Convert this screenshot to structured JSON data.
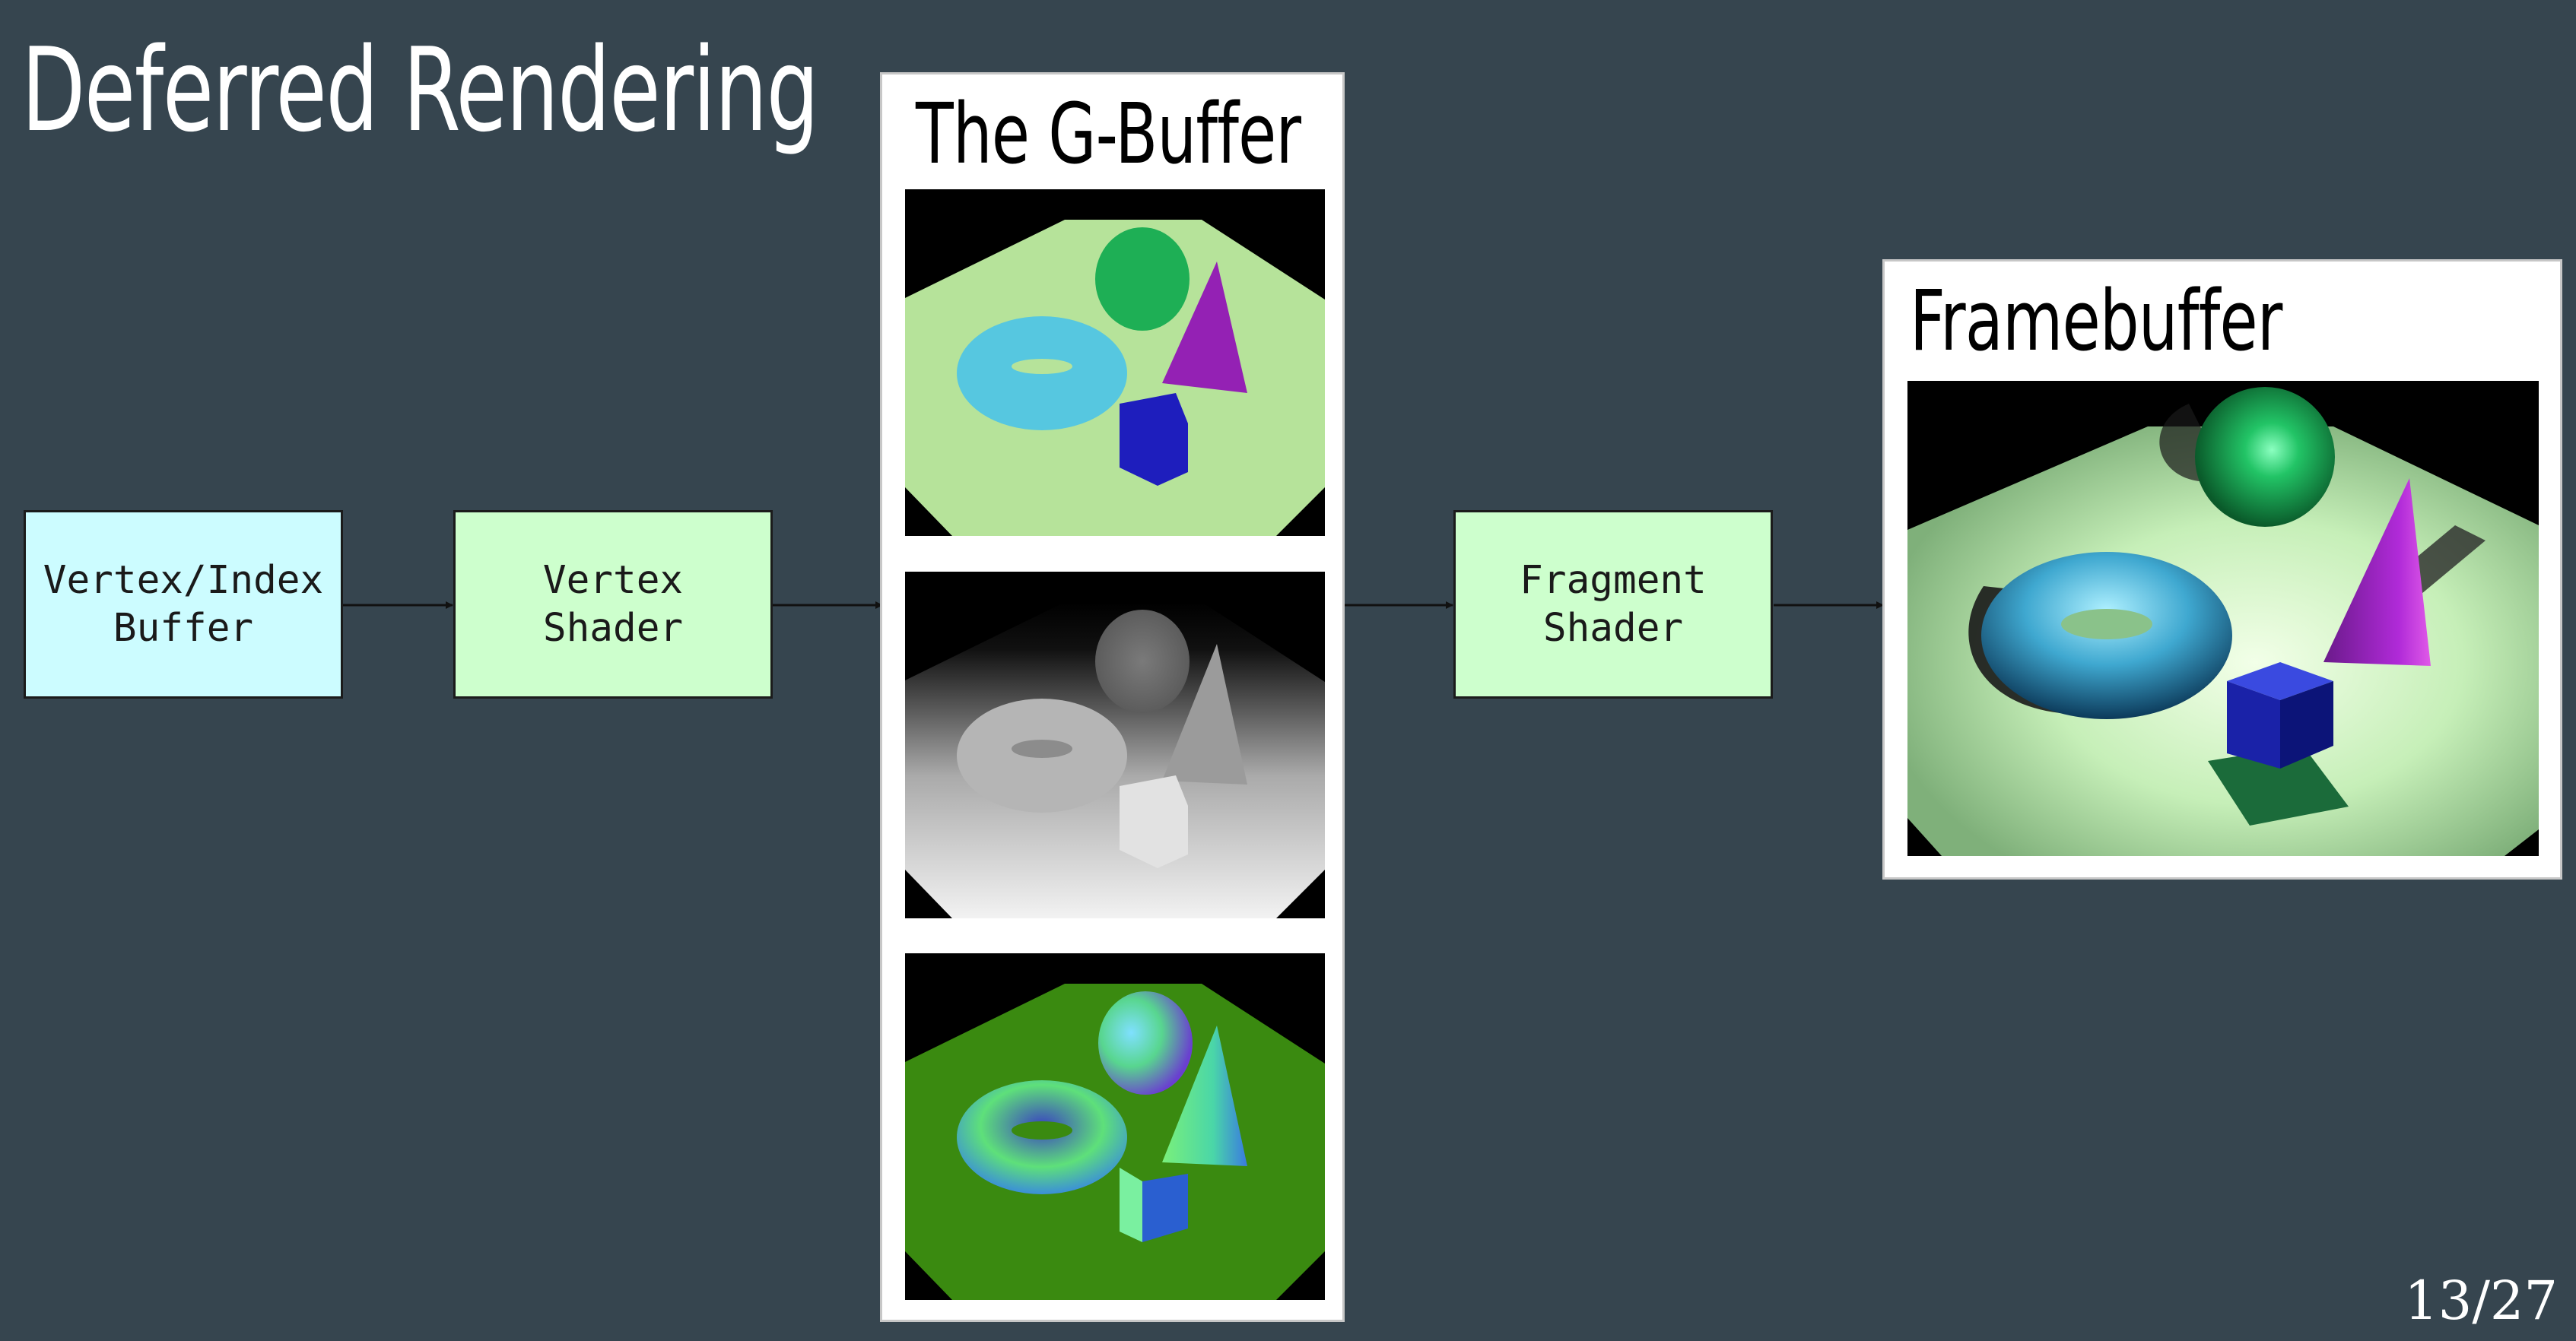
{
  "slide": {
    "title": "Deferred Rendering",
    "page_number": "13/27"
  },
  "pipeline": {
    "stages": [
      {
        "label": "Vertex/Index\nBuffer"
      },
      {
        "label": "Vertex\nShader"
      },
      {
        "label": "Fragment\nShader"
      }
    ]
  },
  "gbuffer": {
    "title": "The G-Buffer",
    "images": [
      "albedo-render",
      "depth-render",
      "normals-render"
    ]
  },
  "framebuffer": {
    "title": "Framebuffer",
    "image": "lit-scene-render"
  },
  "colors": {
    "background": "#36454f",
    "buffer_box": "#ccfcff",
    "shader_box": "#cdffcd"
  }
}
